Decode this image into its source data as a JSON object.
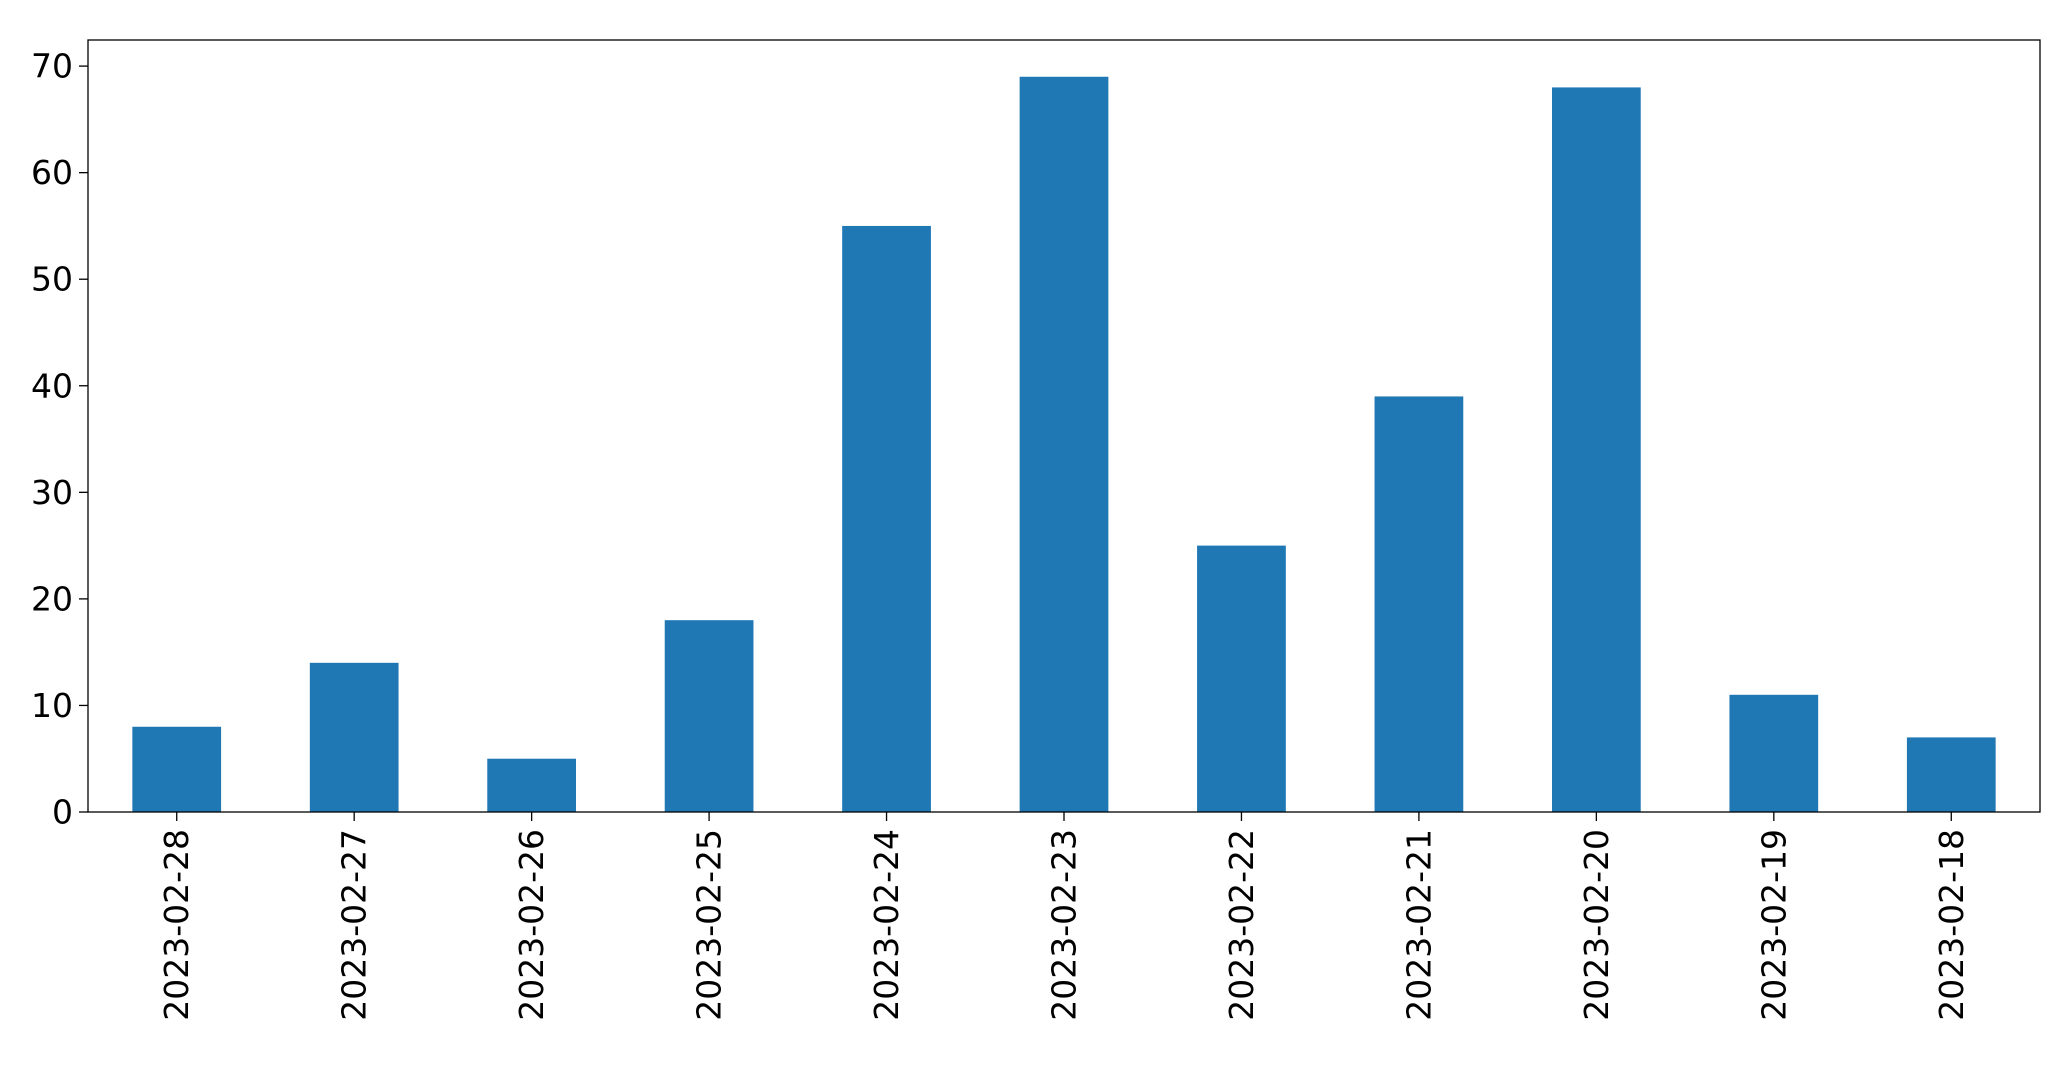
{
  "chart_data": {
    "type": "bar",
    "categories": [
      "2023-02-28",
      "2023-02-27",
      "2023-02-26",
      "2023-02-25",
      "2023-02-24",
      "2023-02-23",
      "2023-02-22",
      "2023-02-21",
      "2023-02-20",
      "2023-02-19",
      "2023-02-18"
    ],
    "values": [
      8,
      14,
      5,
      18,
      55,
      69,
      25,
      39,
      68,
      11,
      7
    ],
    "title": "",
    "xlabel": "",
    "ylabel": "",
    "ylim": [
      0,
      72.45
    ],
    "yticks": [
      "0",
      "10",
      "20",
      "30",
      "40",
      "50",
      "60",
      "70"
    ],
    "grid": false,
    "legend": "none",
    "bar_color": "#1f77b4"
  }
}
